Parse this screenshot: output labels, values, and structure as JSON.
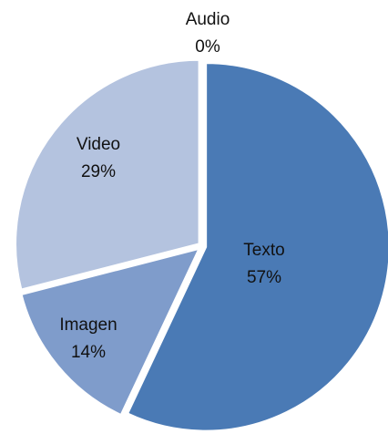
{
  "chart_data": {
    "type": "pie",
    "categories": [
      "Texto",
      "Imagen",
      "Video",
      "Audio"
    ],
    "values": [
      57,
      14,
      29,
      0
    ],
    "value_labels": [
      "57%",
      "14%",
      "29%",
      "0%"
    ],
    "colors": [
      "#4a7ab5",
      "#7f9ccb",
      "#b4c3df",
      "#c9d4e8"
    ]
  }
}
